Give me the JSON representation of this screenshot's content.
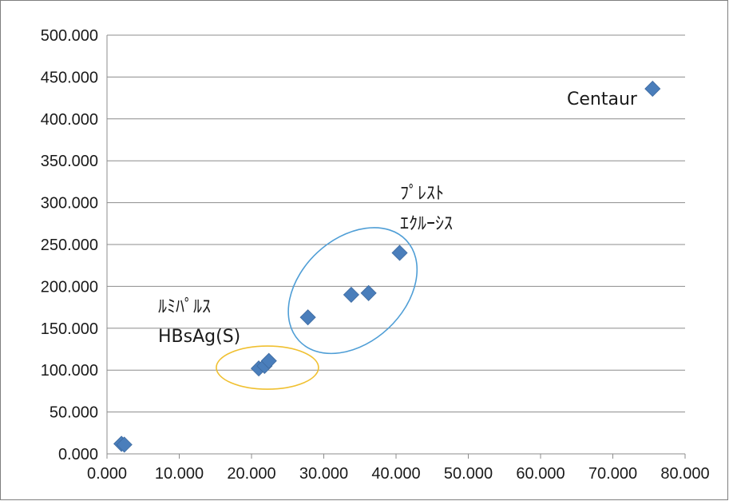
{
  "chart_data": {
    "type": "scatter",
    "title": "",
    "xlabel": "",
    "ylabel": "",
    "xlim": [
      0,
      80
    ],
    "ylim": [
      0,
      500
    ],
    "x_ticks": [
      "0.000",
      "10.000",
      "20.000",
      "30.000",
      "40.000",
      "50.000",
      "60.000",
      "70.000",
      "80.000"
    ],
    "y_ticks": [
      "0.000",
      "50.000",
      "100.000",
      "150.000",
      "200.000",
      "250.000",
      "300.000",
      "350.000",
      "400.000",
      "450.000",
      "500.000"
    ],
    "grid": "horizontal",
    "marker": "diamond",
    "marker_color": "#4a7ebb",
    "points": [
      {
        "x": 2.0,
        "y": 12
      },
      {
        "x": 2.4,
        "y": 11
      },
      {
        "x": 21.0,
        "y": 102
      },
      {
        "x": 21.8,
        "y": 105
      },
      {
        "x": 22.4,
        "y": 111
      },
      {
        "x": 27.8,
        "y": 163
      },
      {
        "x": 33.8,
        "y": 190
      },
      {
        "x": 36.2,
        "y": 192
      },
      {
        "x": 40.5,
        "y": 240
      },
      {
        "x": 75.5,
        "y": 436
      }
    ],
    "annotations": [
      {
        "id": "centaur",
        "lines": [
          "Centaur"
        ]
      },
      {
        "id": "preste",
        "lines": [
          "ﾌﾟﾚｽﾄ",
          "ｴｸﾙｰｼｽ"
        ]
      },
      {
        "id": "lumi",
        "lines": [
          "ﾙﾐﾊﾟﾙｽ",
          "HBsAg(S)"
        ]
      }
    ],
    "groups": [
      {
        "id": "preste-group",
        "color": "#4f9ed6",
        "cx": 34.0,
        "cy": 195,
        "rx": 92,
        "ry": 65,
        "rotate": -43
      },
      {
        "id": "lumi-group",
        "color": "#f0c030",
        "cx": 22.2,
        "cy": 103,
        "rx": 64,
        "ry": 27,
        "rotate": 0
      }
    ]
  }
}
